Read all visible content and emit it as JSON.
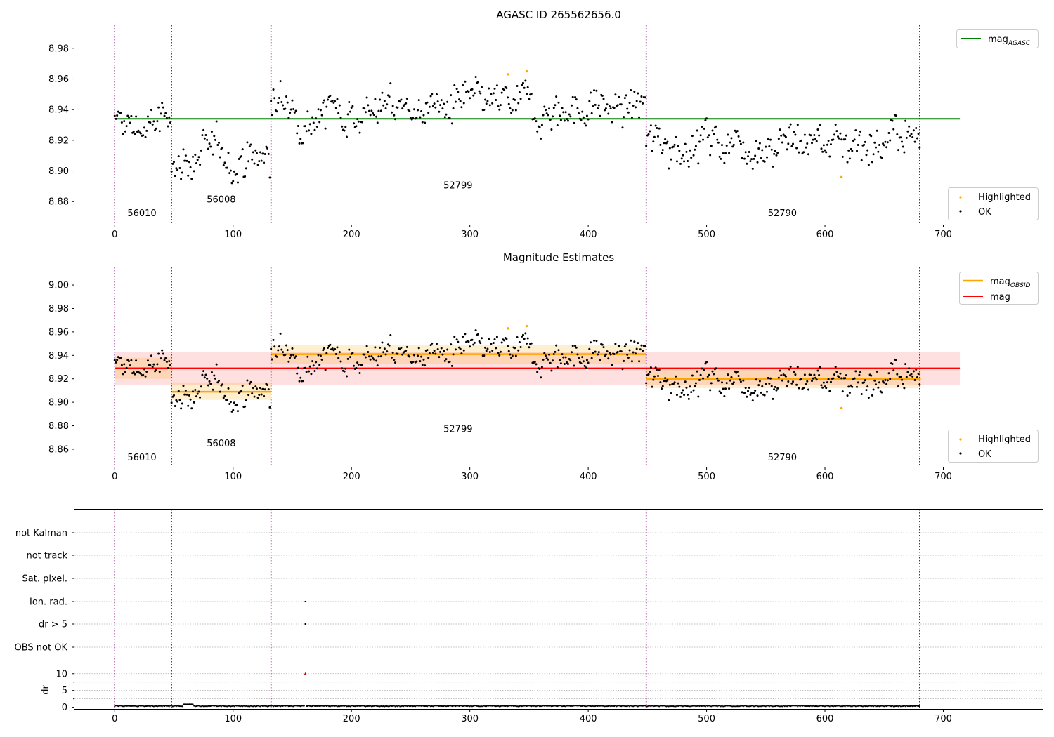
{
  "chart_data": [
    {
      "type": "scatter",
      "title": "AGASC ID 265562656.0",
      "xlim": [
        -34,
        784
      ],
      "ylim": [
        8.865,
        8.995
      ],
      "xticks": [
        0,
        100,
        200,
        300,
        400,
        500,
        600,
        700
      ],
      "yticks": [
        8.88,
        8.9,
        8.92,
        8.94,
        8.96,
        8.98
      ],
      "ytick_labels": [
        "8.88",
        "8.90",
        "8.92",
        "8.94",
        "8.96",
        "8.98"
      ],
      "grid": false,
      "obsid_boundaries": [
        0,
        48,
        132,
        449,
        680
      ],
      "obsids": [
        {
          "label": "56010",
          "x": 23,
          "y": 8.8705
        },
        {
          "label": "56008",
          "x": 90,
          "y": 8.8795
        },
        {
          "label": "52799",
          "x": 290,
          "y": 8.8885
        },
        {
          "label": "52790",
          "x": 564,
          "y": 8.8705
        }
      ],
      "reference_line": {
        "name": "mag_AGASC",
        "label_main": "mag",
        "label_sub": "AGASC",
        "y": 8.934,
        "x": [
          0,
          714
        ],
        "color": "#008000"
      },
      "segments": [
        {
          "x": [
            0,
            48
          ],
          "mean": 8.929,
          "noise": 0.009
        },
        {
          "x": [
            48,
            132
          ],
          "mean": 8.909,
          "noise": 0.008
        },
        {
          "x": [
            132,
            449
          ],
          "mean": 8.941,
          "noise": 0.008
        },
        {
          "x": [
            449,
            681
          ],
          "mean": 8.92,
          "noise": 0.009
        }
      ],
      "highlighted": [
        {
          "x": 332,
          "y": 8.963
        },
        {
          "x": 348,
          "y": 8.965
        },
        {
          "x": 614,
          "y": 8.896
        }
      ],
      "legend": {
        "line_position": "upper right",
        "points_position": "lower right",
        "points": [
          "Highlighted",
          "OK"
        ]
      }
    },
    {
      "type": "scatter",
      "title": "Magnitude Estimates",
      "xlim": [
        -34,
        784
      ],
      "ylim": [
        8.845,
        9.015
      ],
      "xticks": [
        0,
        100,
        200,
        300,
        400,
        500,
        600,
        700
      ],
      "yticks": [
        8.86,
        8.88,
        8.9,
        8.92,
        8.94,
        8.96,
        8.98,
        9.0
      ],
      "ytick_labels": [
        "8.86",
        "8.88",
        "8.90",
        "8.92",
        "8.94",
        "8.96",
        "8.98",
        "9.00"
      ],
      "grid": false,
      "obsid_boundaries": [
        0,
        48,
        132,
        449,
        680
      ],
      "obsids": [
        {
          "label": "56010",
          "x": 23,
          "y": 8.8505
        },
        {
          "label": "56008",
          "x": 90,
          "y": 8.8625
        },
        {
          "label": "52799",
          "x": 290,
          "y": 8.8745
        },
        {
          "label": "52790",
          "x": 564,
          "y": 8.8505
        }
      ],
      "mag_line": {
        "name": "mag",
        "y": 8.929,
        "band": [
          8.915,
          8.943
        ],
        "x": [
          0,
          714
        ],
        "color": "#ff0000",
        "band_color": "#ffdddd"
      },
      "obsid_mags": [
        {
          "x": [
            0,
            48
          ],
          "mag": 8.929,
          "band": [
            8.92,
            8.938
          ]
        },
        {
          "x": [
            48,
            132
          ],
          "mag": 8.909,
          "band": [
            8.902,
            8.917
          ]
        },
        {
          "x": [
            132,
            449
          ],
          "mag": 8.941,
          "band": [
            8.933,
            8.949
          ]
        },
        {
          "x": [
            449,
            681
          ],
          "mag": 8.92,
          "band": [
            8.912,
            8.929
          ]
        }
      ],
      "obsid_mag_name": "mag_OBSID",
      "obsid_mag_label_main": "mag",
      "obsid_mag_label_sub": "OBSID",
      "obsid_mag_color": "#ffa500",
      "highlighted": [
        {
          "x": 332,
          "y": 8.963
        },
        {
          "x": 348,
          "y": 8.965
        },
        {
          "x": 614,
          "y": 8.895
        }
      ],
      "legend": {
        "line_position": "upper right",
        "points_position": "lower right",
        "points": [
          "Highlighted",
          "OK"
        ]
      }
    },
    {
      "type": "scatter",
      "title": "",
      "xlim": [
        -34,
        784
      ],
      "xticks": [
        0,
        100,
        200,
        300,
        400,
        500,
        600,
        700
      ],
      "flag_rows": [
        "not Kalman",
        "not track",
        "Sat. pixel.",
        "Ion. rad.",
        "dr > 5",
        "OBS not OK"
      ],
      "flag_points": [
        {
          "flag": "Ion. rad.",
          "x": 161
        },
        {
          "flag": "dr > 5",
          "x": 161
        }
      ],
      "obsid_boundaries": [
        0,
        48,
        132,
        449,
        680
      ],
      "dr": {
        "ylabel": "dr",
        "ylim": [
          -0.5,
          11
        ],
        "yticks": [
          0,
          5,
          10
        ],
        "ytick_labels": [
          "0",
          "5",
          "10"
        ],
        "clipped_value": {
          "x": 161,
          "y": 10,
          "color": "#cc0000"
        },
        "bump": {
          "x": [
            58,
            66
          ],
          "y": 0.9
        }
      }
    }
  ]
}
